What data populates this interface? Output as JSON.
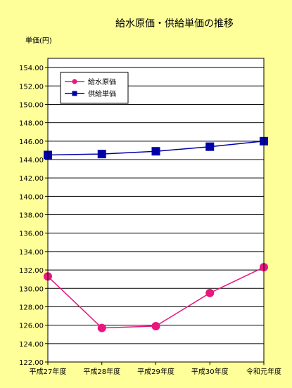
{
  "chart_data": {
    "type": "line",
    "title": "給水原価・供給単価の推移",
    "ylabel": "単価(円)",
    "xlabel": "",
    "categories": [
      "平成27年度",
      "平成28年度",
      "平成29年度",
      "平成30年度",
      "令和元年度"
    ],
    "ylim": [
      122,
      155
    ],
    "y_ticks": [
      "154.00",
      "152.00",
      "150.00",
      "148.00",
      "146.00",
      "144.00",
      "142.00",
      "140.00",
      "138.00",
      "136.00",
      "134.00",
      "132.00",
      "130.00",
      "128.00",
      "126.00",
      "124.00",
      "122.00"
    ],
    "grid": true,
    "legend_position": "top-left",
    "series": [
      {
        "name": "給水原価",
        "values": [
          131.3,
          125.7,
          125.9,
          129.5,
          132.3
        ],
        "color": "#E8167E",
        "marker": "circle"
      },
      {
        "name": "供給単価",
        "values": [
          144.5,
          144.6,
          144.9,
          145.4,
          146.0
        ],
        "color": "#0000A8",
        "marker": "square"
      }
    ]
  }
}
